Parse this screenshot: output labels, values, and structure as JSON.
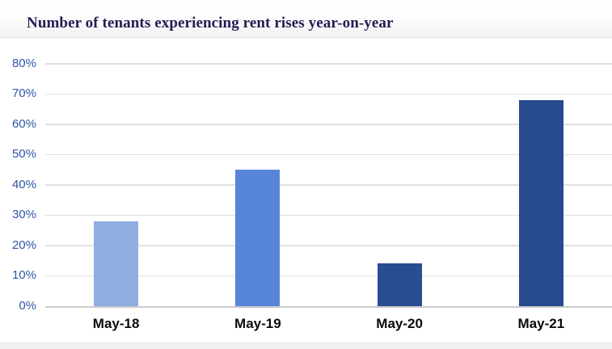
{
  "header": {
    "title": "Number of tenants experiencing rent rises year-on-year"
  },
  "chart_data": {
    "type": "bar",
    "title": "Number of tenants experiencing rent rises year-on-year",
    "categories": [
      "May-18",
      "May-19",
      "May-20",
      "May-21"
    ],
    "values": [
      28,
      45,
      14,
      68
    ],
    "unit": "%",
    "xlabel": "",
    "ylabel": "",
    "ylim": [
      0,
      80
    ],
    "ytick_step": 10,
    "yticks": [
      0,
      10,
      20,
      30,
      40,
      50,
      60,
      70,
      80
    ],
    "ytick_labels": [
      "0%",
      "10%",
      "20%",
      "30%",
      "40%",
      "50%",
      "60%",
      "70%",
      "80%"
    ],
    "grid": "horizontal-only",
    "legend": "none",
    "colors": {
      "bars": [
        "#8FAEE1",
        "#5786D9",
        "#2A4C90",
        "#27498E"
      ],
      "title": "#221D52",
      "y_axis_labels": "#2E56A6",
      "x_axis_labels": "#0B0B0B",
      "gridline": "#E0E0E0",
      "baseline": "#CBCBCB"
    }
  }
}
